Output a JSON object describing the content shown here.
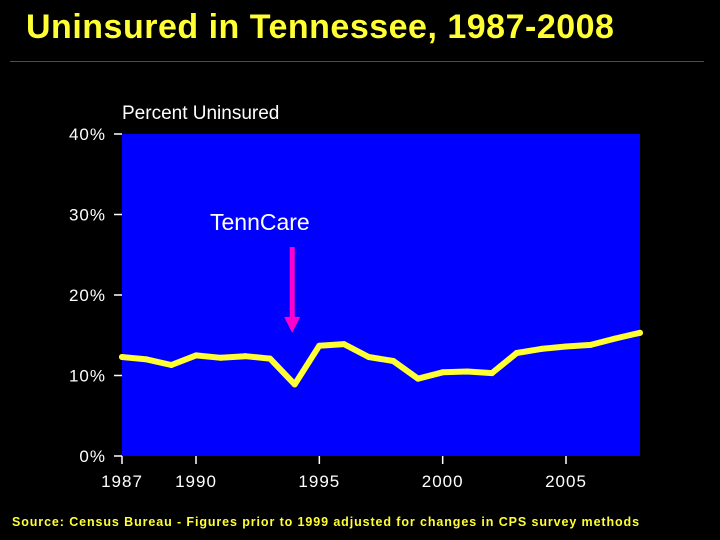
{
  "title": "Uninsured in Tennessee, 1987-2008",
  "source": "Source: Census Bureau - Figures prior to 1999 adjusted for changes in CPS survey methods",
  "colors": {
    "title": "#FFFF33",
    "plot_bg": "#0000FF",
    "line": "#FFFF33",
    "arrow": "#FF00CC",
    "text": "#FFFFFF"
  },
  "chart_data": {
    "type": "line",
    "title": "Uninsured in Tennessee, 1987-2008",
    "xlabel": "",
    "ylabel": "Percent Uninsured",
    "xlim": [
      1987,
      2008
    ],
    "ylim": [
      0,
      40
    ],
    "y_ticks": [
      0,
      10,
      20,
      30,
      40
    ],
    "y_tick_labels": [
      "0%",
      "10%",
      "20%",
      "30%",
      "40%"
    ],
    "x_ticks": [
      1987,
      1990,
      1995,
      2000,
      2005
    ],
    "x_tick_labels": [
      "1987",
      "1990",
      "1995",
      "2000",
      "2005"
    ],
    "series": [
      {
        "name": "Percent Uninsured",
        "x": [
          1987,
          1988,
          1989,
          1990,
          1991,
          1992,
          1993,
          1994,
          1995,
          1996,
          1997,
          1998,
          1999,
          2000,
          2001,
          2002,
          2003,
          2004,
          2005,
          2006,
          2007,
          2008
        ],
        "values": [
          12.3,
          12.0,
          11.3,
          12.5,
          12.2,
          12.4,
          12.1,
          8.9,
          13.7,
          13.9,
          12.3,
          11.8,
          9.6,
          10.4,
          10.5,
          10.3,
          12.8,
          13.3,
          13.6,
          13.8,
          14.6,
          15.3
        ]
      }
    ],
    "annotations": [
      {
        "text": "TennCare",
        "x": 1993.9,
        "y": 15.3,
        "arrow": true
      }
    ],
    "grid": false,
    "legend": "none"
  }
}
